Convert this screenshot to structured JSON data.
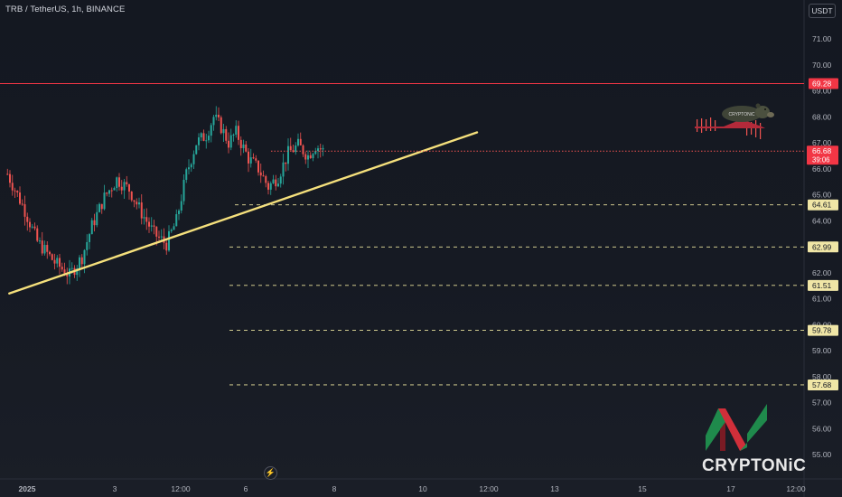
{
  "header": {
    "symbol": "TRB / TetherUS, 1h, BINANCE",
    "currency": "USDT"
  },
  "brand": {
    "name": "CRYPTONiC",
    "badge": "CRYPTONiC"
  },
  "colors": {
    "background": "#131722",
    "up_candle": "#26a69a",
    "down_candle": "#ef5350",
    "trendline": "#f5e07c",
    "support_line": "#e9e19b",
    "resistance_line": "#f23645",
    "axis_text": "#b2b5be"
  },
  "chart_data": {
    "type": "candlestick",
    "y_axis": {
      "range": [
        54.6,
        72.4
      ],
      "tick_labels": [
        "55.00",
        "56.00",
        "57.00",
        "58.00",
        "59.00",
        "60.00",
        "61.00",
        "62.00",
        "63.00",
        "64.00",
        "65.00",
        "66.00",
        "67.00",
        "68.00",
        "69.00",
        "70.00",
        "71.00"
      ]
    },
    "x_axis": {
      "tick_labels": [
        "2025",
        "3",
        "12:00",
        "6",
        "8",
        "10",
        "12:00",
        "13",
        "15",
        "17",
        "12:00"
      ]
    },
    "resistance": {
      "value": 69.28,
      "label": "69.28"
    },
    "current_price": {
      "value": 66.68,
      "label": "66.68",
      "countdown": "39:06"
    },
    "support_levels": [
      {
        "value": 64.61,
        "label": "64.61"
      },
      {
        "value": 62.99,
        "label": "62.99"
      },
      {
        "value": 61.51,
        "label": "61.51"
      },
      {
        "value": 59.78,
        "label": "59.78"
      },
      {
        "value": 57.68,
        "label": "57.68"
      }
    ],
    "trendline": {
      "start": [
        "2025-01-01 03:00",
        61.2
      ],
      "end": [
        "2025-01-09 00:00",
        67.4
      ]
    },
    "close_path": [
      [
        "2025-01-01 03:00",
        65.8
      ],
      [
        "2025-01-01 10:00",
        64.4
      ],
      [
        "2025-01-01 15:00",
        63.2
      ],
      [
        "2025-01-01 22:00",
        62.4
      ],
      [
        "2025-01-02 04:00",
        61.9
      ],
      [
        "2025-01-02 09:00",
        62.6
      ],
      [
        "2025-01-02 13:00",
        63.8
      ],
      [
        "2025-01-02 18:00",
        64.9
      ],
      [
        "2025-01-02 23:00",
        65.6
      ],
      [
        "2025-01-03 04:00",
        65.2
      ],
      [
        "2025-01-03 09:00",
        64.3
      ],
      [
        "2025-01-03 14:00",
        63.5
      ],
      [
        "2025-01-03 19:00",
        63.1
      ],
      [
        "2025-01-03 23:00",
        64.0
      ],
      [
        "2025-01-04 03:00",
        65.8
      ],
      [
        "2025-01-04 07:00",
        67.0
      ],
      [
        "2025-01-04 11:00",
        67.3
      ],
      [
        "2025-01-04 14:00",
        68.0
      ],
      [
        "2025-01-04 17:00",
        67.6
      ],
      [
        "2025-01-04 20:00",
        67.0
      ],
      [
        "2025-01-04 23:00",
        67.4
      ],
      [
        "2025-01-05 04:00",
        66.4
      ],
      [
        "2025-01-05 08:00",
        66.0
      ],
      [
        "2025-01-05 12:00",
        65.3
      ],
      [
        "2025-01-05 16:00",
        65.7
      ],
      [
        "2025-01-05 20:00",
        66.6
      ],
      [
        "2025-01-06 00:00",
        66.9
      ],
      [
        "2025-01-06 04:00",
        66.5
      ],
      [
        "2025-01-06 07:00",
        66.9
      ],
      [
        "2025-01-06 10:00",
        66.7
      ]
    ]
  }
}
